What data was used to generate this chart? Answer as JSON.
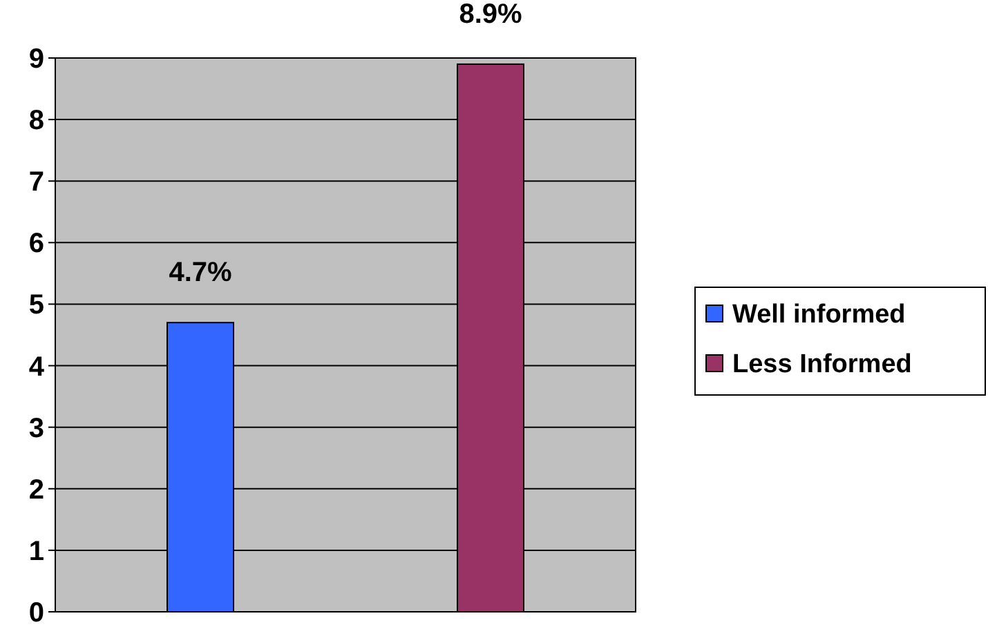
{
  "chart_data": {
    "type": "bar",
    "categories": [
      null,
      null
    ],
    "series": [
      {
        "name": "Well informed",
        "color": "#3366ff",
        "values": [
          4.7,
          null
        ],
        "value_labels": [
          "4.7%",
          null
        ]
      },
      {
        "name": "Less Informed",
        "color": "#993366",
        "values": [
          null,
          8.9
        ],
        "value_labels": [
          null,
          "8.9%"
        ]
      }
    ],
    "ylim": [
      0,
      9
    ],
    "yticks": [
      0,
      1,
      2,
      3,
      4,
      5,
      6,
      7,
      8,
      9
    ],
    "grid": "y",
    "legend": "right"
  }
}
